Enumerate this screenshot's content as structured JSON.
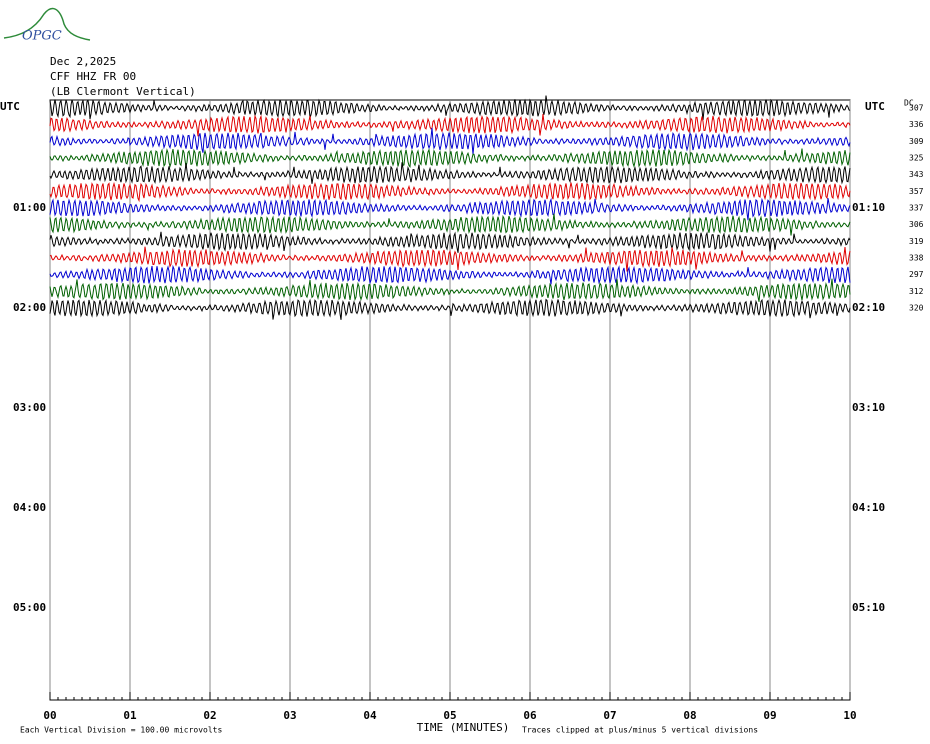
{
  "chart_data": {
    "type": "helicorder",
    "logo": "OPGC",
    "title_lines": [
      "Dec 2,2025",
      "CFF HHZ FR 00",
      "(LB  Clermont Vertical)"
    ],
    "left_axis_label": "UTC",
    "right_axis_label": "UTC",
    "dc_label": "DC",
    "hour_labels": [
      {
        "left": "01:00",
        "right": "01:10"
      },
      {
        "left": "02:00",
        "right": "02:10"
      },
      {
        "left": "03:00",
        "right": "03:10"
      },
      {
        "left": "04:00",
        "right": "04:10"
      },
      {
        "left": "05:00",
        "right": "05:10"
      }
    ],
    "colors": [
      "#000000",
      "#e00000",
      "#0000d0",
      "#006000"
    ],
    "dc_values": [
      307,
      336,
      309,
      325,
      343,
      357,
      337,
      306,
      319,
      338,
      297,
      312,
      320
    ],
    "xlim": [
      0,
      10
    ],
    "xticks": [
      {
        "value": 0,
        "label": "00"
      },
      {
        "value": 1,
        "label": "01"
      },
      {
        "value": 2,
        "label": "02"
      },
      {
        "value": 3,
        "label": "03"
      },
      {
        "value": 4,
        "label": "04"
      },
      {
        "value": 5,
        "label": "05"
      },
      {
        "value": 6,
        "label": "06"
      },
      {
        "value": 7,
        "label": "07"
      },
      {
        "value": 8,
        "label": "08"
      },
      {
        "value": 9,
        "label": "09"
      },
      {
        "value": 10,
        "label": "10"
      }
    ],
    "xlabel": "TIME (MINUTES)",
    "footer_left": "Each Vertical Division =  100.00 microvolts",
    "footer_right": "Traces clipped at plus/minus 5 vertical divisions",
    "grid": true
  }
}
